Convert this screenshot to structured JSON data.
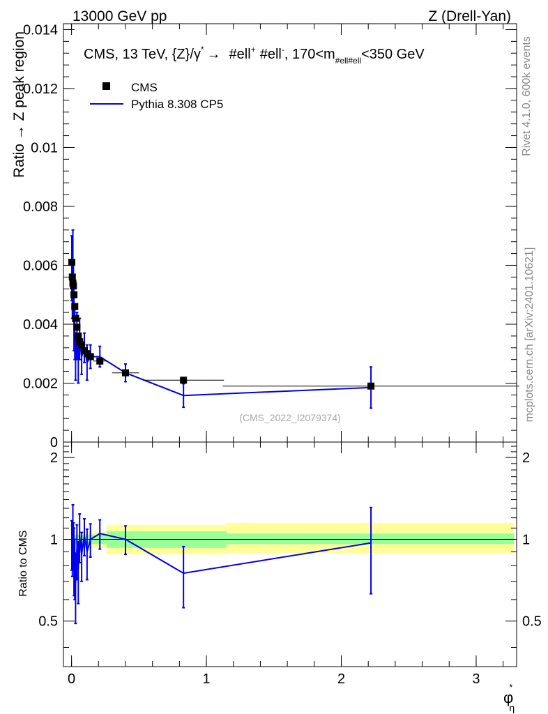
{
  "header": {
    "left_label": "13000 GeV pp",
    "right_label": "Z (Drell-Yan)"
  },
  "side_labels": {
    "rivet": "Rivet 4.1.0,  600k events",
    "source": "mcplots.cern.ch [arXiv:2401.10621]"
  },
  "colors": {
    "data": "#000000",
    "mc": "#0000ee",
    "band_inner": "#99ff99",
    "band_outer": "#ffff99"
  },
  "chart_data": {
    "type": "scatter",
    "title": "CMS, 13 TeV, {Z}/γ* → #ell+ #ell-, 170<m#ell#ell<350 GeV",
    "title_parts": {
      "pre": "CMS, 13 TeV, {Z}/γ",
      "star": "*",
      "arrow": "→",
      "l1": "#ell",
      "plus": "+",
      "l2": "#ell",
      "minus": "-",
      "mid": ", 170<m",
      "sub": "#ell#ell",
      "post": "<350 GeV"
    },
    "xlabel": "φ*η",
    "xlabel_parts": {
      "main": "φ",
      "sup": "*",
      "sub": "η"
    },
    "ylabel": "Ratio → Z peak region",
    "ratio_ylabel": "Ratio to CMS",
    "analysis_tag": "(CMS_2022_I2079374)",
    "xlim": [
      -0.06,
      3.3
    ],
    "ylim": [
      0,
      0.0142
    ],
    "ratio_ylim": [
      0.34,
      2.28
    ],
    "legend_position": "top-left",
    "x_ticks": [
      0,
      1,
      2,
      3
    ],
    "x_tick_labels": [
      "0",
      "1",
      "2",
      "3"
    ],
    "y_ticks": [
      0,
      0.002,
      0.004,
      0.006,
      0.008,
      0.01,
      0.012,
      0.014
    ],
    "y_tick_labels": [
      "0",
      "0.002",
      "0.004",
      "0.006",
      "0.008",
      "0.01",
      "0.012",
      "0.014"
    ],
    "ratio_ticks": [
      0.5,
      1,
      2
    ],
    "ratio_tick_labels": [
      "0.5",
      "1",
      "2"
    ],
    "series": [
      {
        "name": "CMS",
        "kind": "data",
        "x": [
          0.002,
          0.006,
          0.01,
          0.014,
          0.018,
          0.024,
          0.03,
          0.04,
          0.05,
          0.06,
          0.075,
          0.095,
          0.115,
          0.14,
          0.21,
          0.4,
          0.83,
          2.22
        ],
        "xerr": [
          0.002,
          0.002,
          0.002,
          0.002,
          0.002,
          0.003,
          0.004,
          0.005,
          0.005,
          0.006,
          0.008,
          0.01,
          0.012,
          0.02,
          0.05,
          0.1,
          0.3,
          1.1
        ],
        "y": [
          0.0061,
          0.0056,
          0.0054,
          0.0053,
          0.005,
          0.0046,
          0.0042,
          0.0039,
          0.0036,
          0.0034,
          0.0033,
          0.0031,
          0.003,
          0.0029,
          0.00275,
          0.00235,
          0.0021,
          0.0019
        ]
      },
      {
        "name": "Pythia 8.308 CP5",
        "kind": "mc",
        "x": [
          0.002,
          0.006,
          0.01,
          0.014,
          0.018,
          0.024,
          0.03,
          0.04,
          0.05,
          0.06,
          0.075,
          0.095,
          0.115,
          0.14,
          0.21,
          0.4,
          0.83,
          2.22
        ],
        "y": [
          0.0059,
          0.0052,
          0.0059,
          0.0051,
          0.0043,
          0.0037,
          0.0029,
          0.0036,
          0.0028,
          0.0035,
          0.0029,
          0.0032,
          0.0027,
          0.0029,
          0.0029,
          0.00235,
          0.00158,
          0.00185
        ],
        "yerr": [
          0.0011,
          0.001,
          0.0013,
          0.001,
          0.0012,
          0.0009,
          0.0008,
          0.0008,
          0.0008,
          0.0007,
          0.0006,
          0.0005,
          0.0006,
          0.0004,
          0.00035,
          0.0003,
          0.0004,
          0.0007
        ]
      }
    ],
    "ratio_band": {
      "x_edges": [
        0.0,
        0.26,
        1.15,
        3.28
      ],
      "inner_lo": [
        0.96,
        0.93,
        0.96
      ],
      "inner_hi": [
        1.04,
        1.07,
        1.05
      ],
      "outer_lo": [
        0.93,
        0.88,
        0.89
      ],
      "outer_hi": [
        1.07,
        1.13,
        1.15
      ]
    },
    "ratio_series": {
      "name": "Pythia 8.308 CP5",
      "x": [
        0.002,
        0.006,
        0.01,
        0.014,
        0.018,
        0.024,
        0.03,
        0.04,
        0.05,
        0.06,
        0.075,
        0.095,
        0.115,
        0.14,
        0.21,
        0.4,
        0.83,
        2.22
      ],
      "y": [
        0.97,
        0.93,
        1.09,
        0.96,
        0.86,
        0.8,
        0.69,
        0.92,
        0.78,
        1.03,
        0.88,
        1.03,
        0.9,
        1.0,
        1.05,
        1.0,
        0.75,
        0.97
      ],
      "yerr": [
        0.2,
        0.2,
        0.25,
        0.19,
        0.24,
        0.2,
        0.2,
        0.21,
        0.2,
        0.21,
        0.18,
        0.16,
        0.19,
        0.14,
        0.13,
        0.12,
        0.19,
        0.34
      ]
    }
  }
}
